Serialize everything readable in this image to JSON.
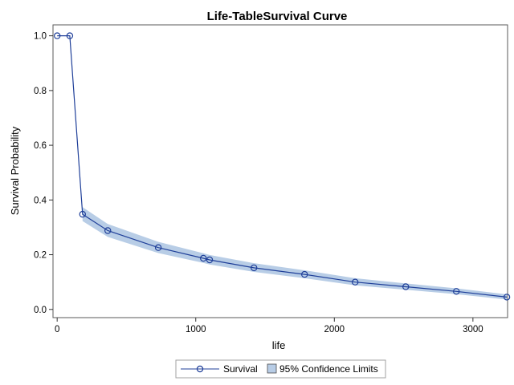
{
  "chart_data": {
    "type": "line",
    "title": "Life-TableSurvival Curve",
    "xlabel": "life",
    "ylabel": "Survival Probability",
    "xlim": [
      -30,
      3250
    ],
    "ylim": [
      -0.03,
      1.04
    ],
    "x_ticks": [
      0,
      1000,
      2000,
      3000
    ],
    "y_ticks": [
      0.0,
      0.2,
      0.4,
      0.6,
      0.8,
      1.0
    ],
    "x_tick_labels": [
      "0",
      "1000",
      "2000",
      "3000"
    ],
    "y_tick_labels": [
      "0.0",
      "0.2",
      "0.4",
      "0.6",
      "0.8",
      "1.0"
    ],
    "grid": false,
    "legend_position": "bottom",
    "series": [
      {
        "name": "Survival",
        "kind": "step-line-markers",
        "color": "#1f3f99",
        "x": [
          0,
          91,
          183,
          365,
          730,
          1055,
          1100,
          1420,
          1785,
          2150,
          2515,
          2880,
          3245
        ],
        "y": [
          1.0,
          1.0,
          0.348,
          0.288,
          0.226,
          0.187,
          0.181,
          0.152,
          0.128,
          0.1,
          0.083,
          0.066,
          0.045
        ]
      },
      {
        "name": "95% Confidence Limits",
        "kind": "band",
        "color": "#b8cde6",
        "x": [
          183,
          365,
          730,
          1055,
          1100,
          1420,
          1785,
          2150,
          2515,
          2880,
          3245
        ],
        "lower": [
          0.323,
          0.265,
          0.206,
          0.17,
          0.164,
          0.137,
          0.114,
          0.088,
          0.072,
          0.056,
          0.036
        ],
        "upper": [
          0.374,
          0.312,
          0.247,
          0.205,
          0.199,
          0.169,
          0.143,
          0.114,
          0.095,
          0.077,
          0.055
        ]
      }
    ]
  }
}
